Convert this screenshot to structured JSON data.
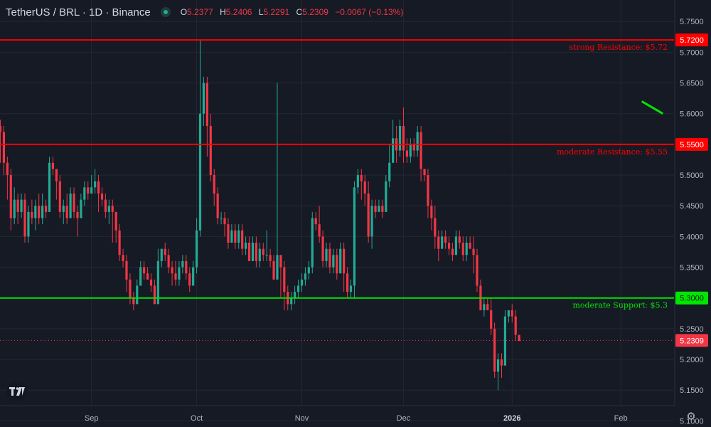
{
  "header": {
    "symbol": "TetherUS / BRL · 1D · Binance",
    "o_label": "O",
    "o_value": "5.2377",
    "h_label": "H",
    "h_value": "5.2406",
    "l_label": "L",
    "l_value": "5.2291",
    "c_label": "C",
    "c_value": "5.2309",
    "change": "−0.0067 (−0.13%)"
  },
  "colors": {
    "up": "#22ab94",
    "down": "#f23645",
    "background": "#161a25",
    "grid": "#242833",
    "support": "#00e600",
    "resistance": "#ff0000"
  },
  "icons": {
    "logo": "tradingview-logo-icon",
    "settings": "gear-icon",
    "status": "market-status-dot-icon"
  },
  "chart_data": {
    "type": "candlestick",
    "title": "TetherUS / BRL · 1D · Binance",
    "y_axis": {
      "range": [
        5.09,
        5.785
      ],
      "ticks": [
        "5.7500",
        "5.7000",
        "5.6500",
        "5.6000",
        "5.5500",
        "5.5000",
        "5.4500",
        "5.4000",
        "5.3500",
        "5.3000",
        "5.2500",
        "5.2000",
        "5.1500",
        "5.1000"
      ]
    },
    "x_axis": {
      "ticks": [
        {
          "label": "Sep",
          "bar": 26
        },
        {
          "label": "Oct",
          "bar": 56
        },
        {
          "label": "Nov",
          "bar": 86
        },
        {
          "label": "Dec",
          "bar": 115
        },
        {
          "label": "2026",
          "bar": 146
        },
        {
          "label": "Feb",
          "bar": 177
        }
      ]
    },
    "grid": true,
    "price_labels": [
      {
        "value": 5.72,
        "text": "5.7200"
      },
      {
        "value": 5.55,
        "text": "5.5500"
      },
      {
        "value": 5.3,
        "text": "5.3000"
      },
      {
        "value": 5.2309,
        "text": "5.2309"
      }
    ],
    "levels": [
      {
        "value": 5.72,
        "label": "strong Resistance: $5.72",
        "kind": "resistance"
      },
      {
        "value": 5.55,
        "label": "moderate Resistance: $5.55",
        "kind": "resistance"
      },
      {
        "value": 5.3,
        "label": "moderate Support: $5.3",
        "kind": "support"
      }
    ],
    "last_price": 5.2309,
    "trend_segment": {
      "from": [
        183,
        5.62
      ],
      "to": [
        189,
        5.6
      ]
    },
    "candles": [
      [
        5.58,
        5.57,
        5.59,
        5.52
      ],
      [
        5.57,
        5.52,
        5.58,
        5.5
      ],
      [
        5.52,
        5.5,
        5.53,
        5.46
      ],
      [
        5.5,
        5.43,
        5.51,
        5.41
      ],
      [
        5.43,
        5.46,
        5.48,
        5.42
      ],
      [
        5.46,
        5.44,
        5.47,
        5.42
      ],
      [
        5.44,
        5.46,
        5.47,
        5.43
      ],
      [
        5.46,
        5.4,
        5.47,
        5.39
      ],
      [
        5.4,
        5.44,
        5.45,
        5.39
      ],
      [
        5.44,
        5.43,
        5.46,
        5.42
      ],
      [
        5.43,
        5.45,
        5.46,
        5.41
      ],
      [
        5.45,
        5.43,
        5.47,
        5.42
      ],
      [
        5.43,
        5.45,
        5.47,
        5.42
      ],
      [
        5.45,
        5.44,
        5.46,
        5.43
      ],
      [
        5.44,
        5.52,
        5.53,
        5.44
      ],
      [
        5.52,
        5.51,
        5.53,
        5.5
      ],
      [
        5.51,
        5.49,
        5.51,
        5.46
      ],
      [
        5.49,
        5.44,
        5.5,
        5.43
      ],
      [
        5.44,
        5.45,
        5.46,
        5.42
      ],
      [
        5.45,
        5.43,
        5.47,
        5.42
      ],
      [
        5.43,
        5.47,
        5.48,
        5.43
      ],
      [
        5.47,
        5.44,
        5.48,
        5.43
      ],
      [
        5.44,
        5.43,
        5.45,
        5.4
      ],
      [
        5.43,
        5.46,
        5.47,
        5.43
      ],
      [
        5.46,
        5.48,
        5.49,
        5.45
      ],
      [
        5.48,
        5.47,
        5.49,
        5.46
      ],
      [
        5.47,
        5.48,
        5.5,
        5.47
      ],
      [
        5.48,
        5.49,
        5.51,
        5.47
      ],
      [
        5.49,
        5.47,
        5.5,
        5.44
      ],
      [
        5.47,
        5.46,
        5.48,
        5.45
      ],
      [
        5.46,
        5.44,
        5.47,
        5.43
      ],
      [
        5.44,
        5.45,
        5.46,
        5.42
      ],
      [
        5.45,
        5.44,
        5.46,
        5.39
      ],
      [
        5.44,
        5.41,
        5.44,
        5.39
      ],
      [
        5.41,
        5.37,
        5.42,
        5.36
      ],
      [
        5.37,
        5.36,
        5.38,
        5.35
      ],
      [
        5.36,
        5.33,
        5.37,
        5.31
      ],
      [
        5.33,
        5.3,
        5.34,
        5.29
      ],
      [
        5.3,
        5.29,
        5.31,
        5.28
      ],
      [
        5.29,
        5.32,
        5.33,
        5.29
      ],
      [
        5.32,
        5.35,
        5.36,
        5.32
      ],
      [
        5.35,
        5.34,
        5.36,
        5.33
      ],
      [
        5.34,
        5.33,
        5.35,
        5.33
      ],
      [
        5.33,
        5.32,
        5.34,
        5.31
      ],
      [
        5.32,
        5.29,
        5.33,
        5.29
      ],
      [
        5.29,
        5.36,
        5.38,
        5.29
      ],
      [
        5.36,
        5.38,
        5.38,
        5.35
      ],
      [
        5.38,
        5.37,
        5.39,
        5.36
      ],
      [
        5.37,
        5.35,
        5.38,
        5.34
      ],
      [
        5.35,
        5.34,
        5.36,
        5.32
      ],
      [
        5.34,
        5.33,
        5.36,
        5.32
      ],
      [
        5.33,
        5.35,
        5.36,
        5.32
      ],
      [
        5.35,
        5.36,
        5.37,
        5.34
      ],
      [
        5.36,
        5.34,
        5.37,
        5.33
      ],
      [
        5.34,
        5.32,
        5.35,
        5.31
      ],
      [
        5.32,
        5.35,
        5.36,
        5.32
      ],
      [
        5.35,
        5.41,
        5.43,
        5.34
      ],
      [
        5.41,
        5.6,
        5.72,
        5.4
      ],
      [
        5.6,
        5.65,
        5.66,
        5.58
      ],
      [
        5.65,
        5.58,
        5.66,
        5.53
      ],
      [
        5.58,
        5.5,
        5.6,
        5.49
      ],
      [
        5.5,
        5.47,
        5.51,
        5.45
      ],
      [
        5.47,
        5.43,
        5.48,
        5.42
      ],
      [
        5.43,
        5.43,
        5.44,
        5.42
      ],
      [
        5.43,
        5.42,
        5.44,
        5.4
      ],
      [
        5.42,
        5.39,
        5.43,
        5.38
      ],
      [
        5.39,
        5.41,
        5.42,
        5.39
      ],
      [
        5.41,
        5.39,
        5.42,
        5.38
      ],
      [
        5.39,
        5.41,
        5.42,
        5.38
      ],
      [
        5.41,
        5.38,
        5.42,
        5.37
      ],
      [
        5.38,
        5.39,
        5.4,
        5.37
      ],
      [
        5.39,
        5.36,
        5.4,
        5.36
      ],
      [
        5.36,
        5.39,
        5.4,
        5.36
      ],
      [
        5.39,
        5.36,
        5.4,
        5.35
      ],
      [
        5.36,
        5.38,
        5.39,
        5.35
      ],
      [
        5.38,
        5.37,
        5.39,
        5.36
      ],
      [
        5.37,
        5.37,
        5.41,
        5.36
      ],
      [
        5.37,
        5.36,
        5.38,
        5.35
      ],
      [
        5.36,
        5.33,
        5.37,
        5.33
      ],
      [
        5.33,
        5.37,
        5.65,
        5.33
      ],
      [
        5.37,
        5.35,
        5.37,
        5.3
      ],
      [
        5.35,
        5.31,
        5.36,
        5.28
      ],
      [
        5.31,
        5.29,
        5.32,
        5.28
      ],
      [
        5.29,
        5.3,
        5.31,
        5.28
      ],
      [
        5.3,
        5.31,
        5.32,
        5.29
      ],
      [
        5.31,
        5.32,
        5.33,
        5.3
      ],
      [
        5.32,
        5.33,
        5.34,
        5.31
      ],
      [
        5.33,
        5.34,
        5.35,
        5.32
      ],
      [
        5.34,
        5.35,
        5.36,
        5.33
      ],
      [
        5.35,
        5.43,
        5.44,
        5.34
      ],
      [
        5.43,
        5.42,
        5.44,
        5.41
      ],
      [
        5.42,
        5.4,
        5.45,
        5.39
      ],
      [
        5.4,
        5.36,
        5.41,
        5.35
      ],
      [
        5.36,
        5.38,
        5.39,
        5.35
      ],
      [
        5.38,
        5.35,
        5.39,
        5.34
      ],
      [
        5.35,
        5.37,
        5.38,
        5.34
      ],
      [
        5.37,
        5.34,
        5.38,
        5.33
      ],
      [
        5.34,
        5.38,
        5.39,
        5.34
      ],
      [
        5.38,
        5.34,
        5.39,
        5.31
      ],
      [
        5.34,
        5.31,
        5.35,
        5.3
      ],
      [
        5.31,
        5.32,
        5.33,
        5.3
      ],
      [
        5.32,
        5.48,
        5.49,
        5.3
      ],
      [
        5.48,
        5.5,
        5.51,
        5.47
      ],
      [
        5.5,
        5.49,
        5.51,
        5.46
      ],
      [
        5.49,
        5.47,
        5.5,
        5.45
      ],
      [
        5.47,
        5.4,
        5.49,
        5.39
      ],
      [
        5.4,
        5.45,
        5.46,
        5.38
      ],
      [
        5.45,
        5.44,
        5.46,
        5.43
      ],
      [
        5.44,
        5.45,
        5.46,
        5.44
      ],
      [
        5.45,
        5.44,
        5.46,
        5.43
      ],
      [
        5.44,
        5.49,
        5.5,
        5.44
      ],
      [
        5.49,
        5.52,
        5.55,
        5.48
      ],
      [
        5.52,
        5.56,
        5.59,
        5.52
      ],
      [
        5.56,
        5.54,
        5.58,
        5.52
      ],
      [
        5.54,
        5.58,
        5.59,
        5.53
      ],
      [
        5.58,
        5.54,
        5.61,
        5.52
      ],
      [
        5.54,
        5.53,
        5.56,
        5.52
      ],
      [
        5.53,
        5.55,
        5.56,
        5.52
      ],
      [
        5.55,
        5.54,
        5.56,
        5.53
      ],
      [
        5.54,
        5.57,
        5.58,
        5.53
      ],
      [
        5.57,
        5.51,
        5.58,
        5.49
      ],
      [
        5.51,
        5.5,
        5.51,
        5.49
      ],
      [
        5.5,
        5.45,
        5.51,
        5.43
      ],
      [
        5.45,
        5.43,
        5.46,
        5.41
      ],
      [
        5.43,
        5.4,
        5.45,
        5.38
      ],
      [
        5.4,
        5.38,
        5.41,
        5.36
      ],
      [
        5.38,
        5.4,
        5.41,
        5.38
      ],
      [
        5.4,
        5.39,
        5.41,
        5.38
      ],
      [
        5.39,
        5.38,
        5.4,
        5.37
      ],
      [
        5.38,
        5.37,
        5.39,
        5.36
      ],
      [
        5.37,
        5.4,
        5.41,
        5.37
      ],
      [
        5.4,
        5.39,
        5.41,
        5.38
      ],
      [
        5.39,
        5.37,
        5.4,
        5.36
      ],
      [
        5.37,
        5.39,
        5.4,
        5.36
      ],
      [
        5.39,
        5.38,
        5.4,
        5.38
      ],
      [
        5.38,
        5.37,
        5.4,
        5.34
      ],
      [
        5.37,
        5.32,
        5.38,
        5.31
      ],
      [
        5.32,
        5.28,
        5.33,
        5.28
      ],
      [
        5.28,
        5.29,
        5.3,
        5.27
      ],
      [
        5.29,
        5.28,
        5.3,
        5.28
      ],
      [
        5.28,
        5.25,
        5.3,
        5.24
      ],
      [
        5.25,
        5.18,
        5.26,
        5.17
      ],
      [
        5.18,
        5.2,
        5.21,
        5.15
      ],
      [
        5.2,
        5.19,
        5.21,
        5.17
      ],
      [
        5.19,
        5.27,
        5.28,
        5.19
      ],
      [
        5.27,
        5.28,
        5.28,
        5.26
      ],
      [
        5.28,
        5.27,
        5.29,
        5.26
      ],
      [
        5.27,
        5.24,
        5.28,
        5.23
      ],
      [
        5.24,
        5.23,
        5.24,
        5.23
      ]
    ]
  }
}
